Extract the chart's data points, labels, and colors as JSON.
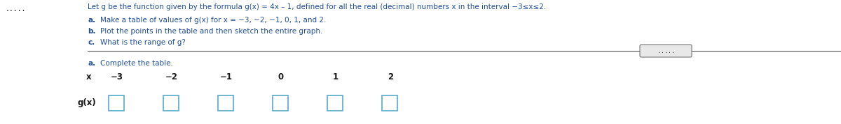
{
  "title_text": "Let g be the function given by the formula g(x) = 4x – 1, defined for all the real (decimal) numbers x in the interval −3≤x≤2.",
  "line_a": "a. Make a table of values of g(x) for x = −3, −2, −1, 0, 1, and 2.",
  "line_b": "b. Plot the points in the table and then sketch the entire graph.",
  "line_c": "c. What is the range of g?",
  "section_a": "a. Complete the table.",
  "x_label": "x",
  "gx_label": "g(x)",
  "x_values": [
    "−3",
    "−2",
    "−1",
    "0",
    "1",
    "2"
  ],
  "background_color": "#ffffff",
  "text_color_blue": "#1f4e9a",
  "text_color_dark": "#1a1a1a",
  "bold_labels": [
    "a.",
    "b.",
    "c."
  ],
  "separator_color": "#555555",
  "dots_color": "#555555",
  "box_color": "#55aacc",
  "box_fill": "#ffffff"
}
